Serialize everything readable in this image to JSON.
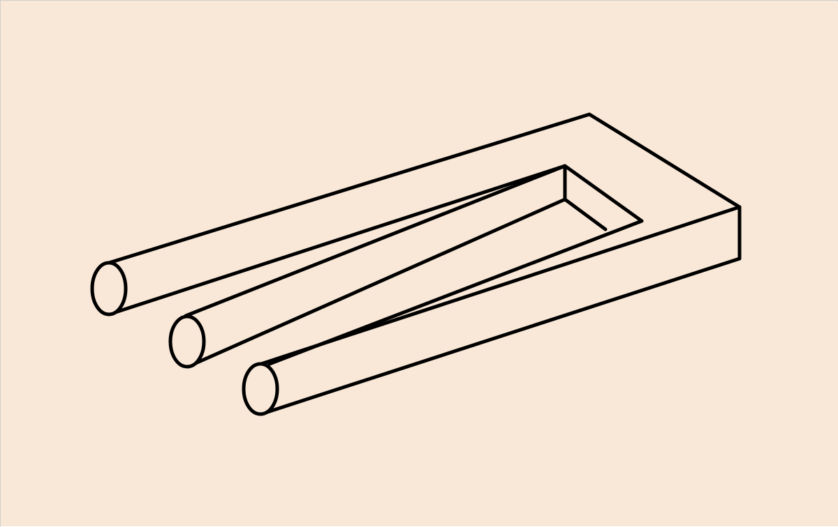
{
  "figure": {
    "subject": "impossible-trident-blivet",
    "background_color": "#f9e8d8",
    "line_color": "#000000",
    "prong_count": 3
  }
}
